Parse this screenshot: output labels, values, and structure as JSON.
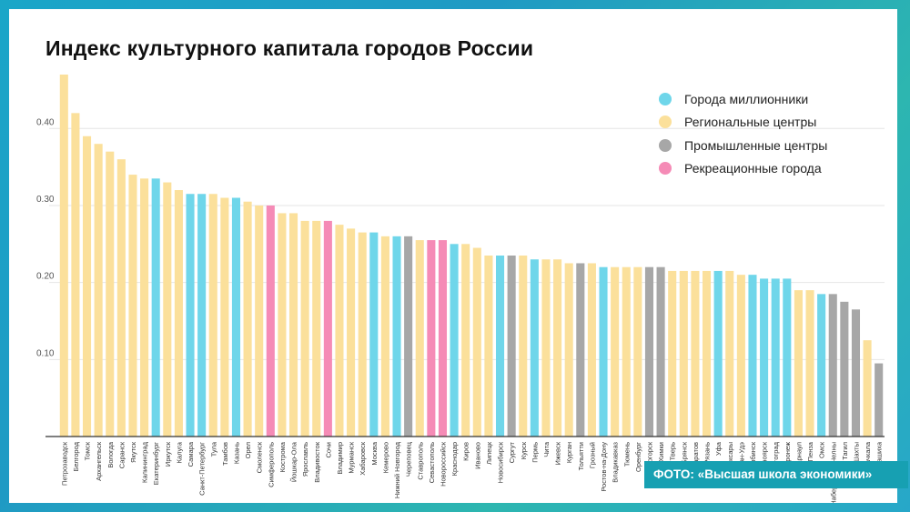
{
  "title": "Индекс культурного капитала городов России",
  "photo_credit": "ФОТО: «Высшая школа экономики»",
  "colors": {
    "millionaire": "#6fd6ea",
    "regional": "#fbe09b",
    "industrial": "#a7a7a7",
    "recreational": "#f58bb6"
  },
  "legend": [
    {
      "key": "millionaire",
      "label": "Города миллионники"
    },
    {
      "key": "regional",
      "label": "Региональные  центры"
    },
    {
      "key": "industrial",
      "label": "Промышленные центры"
    },
    {
      "key": "recreational",
      "label": "Рекреационные города"
    }
  ],
  "chart_data": {
    "type": "bar",
    "title": "Индекс культурного капитала городов России",
    "xlabel": "",
    "ylabel": "",
    "ylim": [
      0,
      0.47
    ],
    "yticks": [
      0.1,
      0.2,
      0.3,
      0.4
    ],
    "ytick_labels": [
      "0.10",
      "0.20",
      "0.30",
      "0.40"
    ],
    "grid": true,
    "legend_position": "top-right",
    "categories": [
      "Петрозаводск",
      "Белгород",
      "Томск",
      "Архангельск",
      "Вологда",
      "Саранск",
      "Якутск",
      "Калининград",
      "Екатеринбург",
      "Иркутск",
      "Калуга",
      "Самара",
      "Санкт-Петербург",
      "Тула",
      "Тамбов",
      "Казань",
      "Орел",
      "Смоленск",
      "Симферополь",
      "Кострома",
      "Йошкар-Ола",
      "Ярославль",
      "Владивосток",
      "Сочи",
      "Владимир",
      "Мурманск",
      "Хабаровск",
      "Москва",
      "Кемерово",
      "Нижний Новгород",
      "Череповец",
      "Ставрополь",
      "Севастополь",
      "Новороссийск",
      "Краснодар",
      "Киров",
      "Иваново",
      "Липецк",
      "Новосибирск",
      "Сургут",
      "Курск",
      "Пермь",
      "Чита",
      "Ижевск",
      "Курган",
      "Тольятти",
      "Грозный",
      "Ростов-на-Дону",
      "Владикавказ",
      "Тюмень",
      "Оренбург",
      "Магнитогорск",
      "Химки",
      "Тверь",
      "Брянск",
      "Саратов",
      "Рязань",
      "Уфа",
      "Чебоксары",
      "Улан-Удэ",
      "Челябинск",
      "Красноярск",
      "Волгоград",
      "Воронеж",
      "Барнаул",
      "Пенза",
      "Омск",
      "Набережные Челны",
      "Нижний Тагил",
      "Шахты",
      "Махачкала",
      "Балашиха"
    ],
    "city_type": [
      "regional",
      "regional",
      "regional",
      "regional",
      "regional",
      "regional",
      "regional",
      "regional",
      "millionaire",
      "regional",
      "regional",
      "millionaire",
      "millionaire",
      "regional",
      "regional",
      "millionaire",
      "regional",
      "regional",
      "recreational",
      "regional",
      "regional",
      "regional",
      "regional",
      "recreational",
      "regional",
      "regional",
      "regional",
      "millionaire",
      "regional",
      "millionaire",
      "industrial",
      "regional",
      "recreational",
      "recreational",
      "millionaire",
      "regional",
      "regional",
      "regional",
      "millionaire",
      "industrial",
      "regional",
      "millionaire",
      "regional",
      "regional",
      "regional",
      "industrial",
      "regional",
      "millionaire",
      "regional",
      "regional",
      "regional",
      "industrial",
      "industrial",
      "regional",
      "regional",
      "regional",
      "regional",
      "millionaire",
      "regional",
      "regional",
      "millionaire",
      "millionaire",
      "millionaire",
      "millionaire",
      "regional",
      "regional",
      "millionaire",
      "industrial",
      "industrial",
      "industrial",
      "regional",
      "industrial"
    ],
    "values": [
      0.47,
      0.42,
      0.39,
      0.38,
      0.37,
      0.36,
      0.34,
      0.335,
      0.335,
      0.33,
      0.32,
      0.315,
      0.315,
      0.315,
      0.31,
      0.31,
      0.305,
      0.3,
      0.3,
      0.29,
      0.29,
      0.28,
      0.28,
      0.28,
      0.275,
      0.27,
      0.265,
      0.265,
      0.26,
      0.26,
      0.26,
      0.255,
      0.255,
      0.255,
      0.25,
      0.25,
      0.245,
      0.235,
      0.235,
      0.235,
      0.235,
      0.23,
      0.23,
      0.23,
      0.225,
      0.225,
      0.225,
      0.22,
      0.22,
      0.22,
      0.22,
      0.22,
      0.22,
      0.215,
      0.215,
      0.215,
      0.215,
      0.215,
      0.215,
      0.21,
      0.21,
      0.205,
      0.205,
      0.205,
      0.19,
      0.19,
      0.185,
      0.185,
      0.175,
      0.165,
      0.125,
      0.095
    ]
  }
}
